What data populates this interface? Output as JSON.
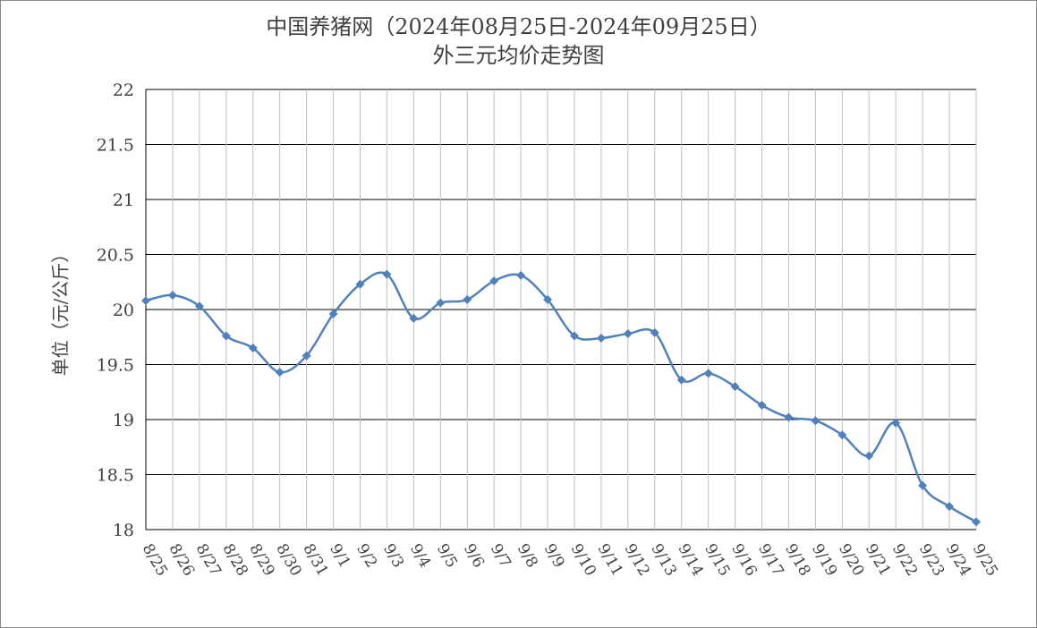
{
  "chart_data": {
    "type": "line",
    "title_line1": "中国养猪网（2024年08月25日-2024年09月25日）",
    "title_line2": "外三元均价走势图",
    "ylabel": "单位（元/公斤）",
    "xlabel": "",
    "ylim": [
      18,
      22
    ],
    "yticks": [
      18,
      18.5,
      19,
      19.5,
      20,
      20.5,
      21,
      21.5,
      22
    ],
    "ytick_labels": [
      "18",
      "18.5",
      "19",
      "19.5",
      "20",
      "20.5",
      "21",
      "21.5",
      "22"
    ],
    "grid": true,
    "legend": "none",
    "line_color": "#4F81BD",
    "categories": [
      "8/25",
      "8/26",
      "8/27",
      "8/28",
      "8/29",
      "8/30",
      "8/31",
      "9/1",
      "9/2",
      "9/3",
      "9/4",
      "9/5",
      "9/6",
      "9/7",
      "9/8",
      "9/9",
      "9/10",
      "9/11",
      "9/12",
      "9/13",
      "9/14",
      "9/15",
      "9/16",
      "9/17",
      "9/18",
      "9/19",
      "9/20",
      "9/21",
      "9/22",
      "9/23",
      "9/24",
      "9/25"
    ],
    "values": [
      20.08,
      20.13,
      20.03,
      19.76,
      19.65,
      19.43,
      19.58,
      19.96,
      20.23,
      20.32,
      19.92,
      20.06,
      20.09,
      20.26,
      20.31,
      20.09,
      19.76,
      19.74,
      19.78,
      19.79,
      19.36,
      19.42,
      19.3,
      19.13,
      19.02,
      18.99,
      18.86,
      18.67,
      18.97,
      18.4,
      18.21,
      18.07
    ]
  }
}
